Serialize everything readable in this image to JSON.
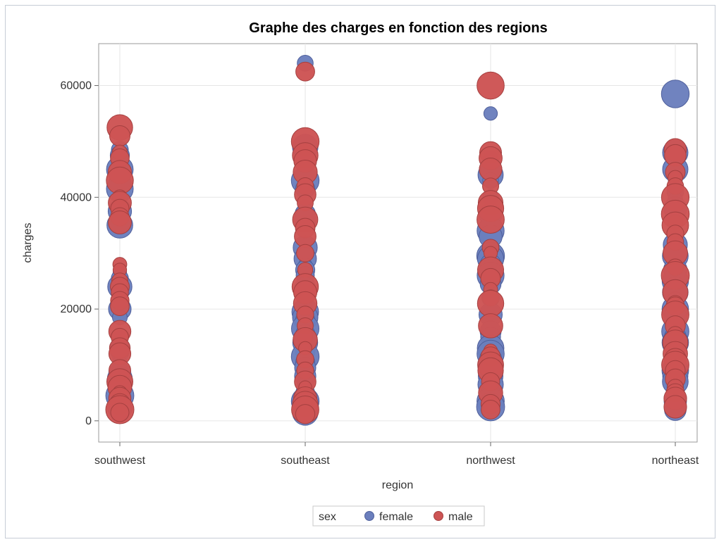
{
  "chart_data": {
    "type": "scatter",
    "title": "Graphe des charges en fonction des regions",
    "xlabel": "region",
    "ylabel": "charges",
    "categories": [
      "southwest",
      "southeast",
      "northwest",
      "northeast"
    ],
    "y_ticks": [
      0,
      20000,
      40000,
      60000
    ],
    "ylim": [
      -3800,
      67500
    ],
    "grid": true,
    "legend": {
      "title": "sex",
      "placement": "bottom-center",
      "items": [
        {
          "name": "female",
          "color": "#6b7fbd"
        },
        {
          "name": "male",
          "color": "#cd5454"
        }
      ]
    },
    "series": [
      {
        "name": "female",
        "color": "#6b7fbd",
        "stroke": "#4f609c",
        "points": [
          {
            "x": "southwest",
            "values": [
              48500,
              47500,
              46000,
              45000,
              42500,
              41500,
              37500,
              36500,
              35000,
              26500,
              25500,
              24000,
              20000,
              18500,
              15000,
              14000,
              13000,
              12500,
              11500,
              10500,
              9500,
              8500,
              7500,
              6500,
              6000,
              5000,
              4500,
              3500,
              2500,
              1500
            ]
          },
          {
            "x": "southeast",
            "values": [
              64000,
              49000,
              48000,
              47000,
              46000,
              44500,
              43000,
              41500,
              38500,
              37000,
              36000,
              31000,
              29000,
              28000,
              27000,
              26000,
              25000,
              24000,
              22500,
              19500,
              18500,
              18000,
              16500,
              15500,
              14000,
              12500,
              11500,
              10500,
              9500,
              8000,
              6500,
              5000,
              3500,
              2500,
              1500
            ]
          },
          {
            "x": "northwest",
            "values": [
              55000,
              47000,
              46000,
              44000,
              43000,
              40000,
              37000,
              34000,
              33000,
              29500,
              29000,
              28000,
              26000,
              24500,
              22000,
              19000,
              16000,
              15000,
              14000,
              13000,
              12000,
              11000,
              10000,
              9000,
              8000,
              6500,
              5500,
              4500,
              3500,
              2500
            ]
          },
          {
            "x": "northeast",
            "values": [
              58500,
              48000,
              47000,
              46000,
              45000,
              43000,
              41000,
              39500,
              38000,
              36500,
              31500,
              29500,
              27000,
              25000,
              24000,
              23000,
              21500,
              20000,
              18500,
              16000,
              15000,
              14000,
              13000,
              12000,
              11000,
              10000,
              9000,
              8000,
              7000,
              6000,
              4500,
              3500,
              2000
            ]
          }
        ]
      },
      {
        "name": "male",
        "color": "#cd5454",
        "stroke": "#a54040",
        "points": [
          {
            "x": "southwest",
            "values": [
              52500,
              51000,
              48000,
              47000,
              44500,
              43000,
              40000,
              39000,
              38000,
              36500,
              35500,
              28000,
              27000,
              25000,
              24000,
              23000,
              21500,
              20500,
              16000,
              15000,
              13000,
              12000,
              9000,
              7000,
              6000,
              5000,
              4000,
              3000,
              2000,
              1500
            ]
          },
          {
            "x": "southeast",
            "values": [
              62500,
              50000,
              48500,
              47500,
              46500,
              44500,
              42000,
              40500,
              39000,
              36000,
              34500,
              33000,
              30000,
              27000,
              24000,
              23000,
              21000,
              19000,
              17000,
              15000,
              14500,
              13000,
              11000,
              9000,
              7000,
              6000,
              4000,
              3000,
              2000,
              1200
            ]
          },
          {
            "x": "northwest",
            "values": [
              60000,
              48000,
              47000,
              45000,
              42000,
              39000,
              38000,
              36000,
              31000,
              30000,
              27000,
              25500,
              23500,
              22000,
              21000,
              17000,
              12500,
              11500,
              10000,
              9000,
              7000,
              5000,
              3000,
              2000
            ]
          },
          {
            "x": "northeast",
            "values": [
              48500,
              47500,
              44500,
              43500,
              42000,
              40000,
              37000,
              35500,
              35000,
              33500,
              32000,
              30000,
              27500,
              26000,
              23000,
              21000,
              20500,
              19000,
              17000,
              15500,
              14000,
              12000,
              11000,
              10000,
              9000,
              7500,
              6000,
              5000,
              4000,
              2500
            ]
          }
        ]
      }
    ]
  }
}
